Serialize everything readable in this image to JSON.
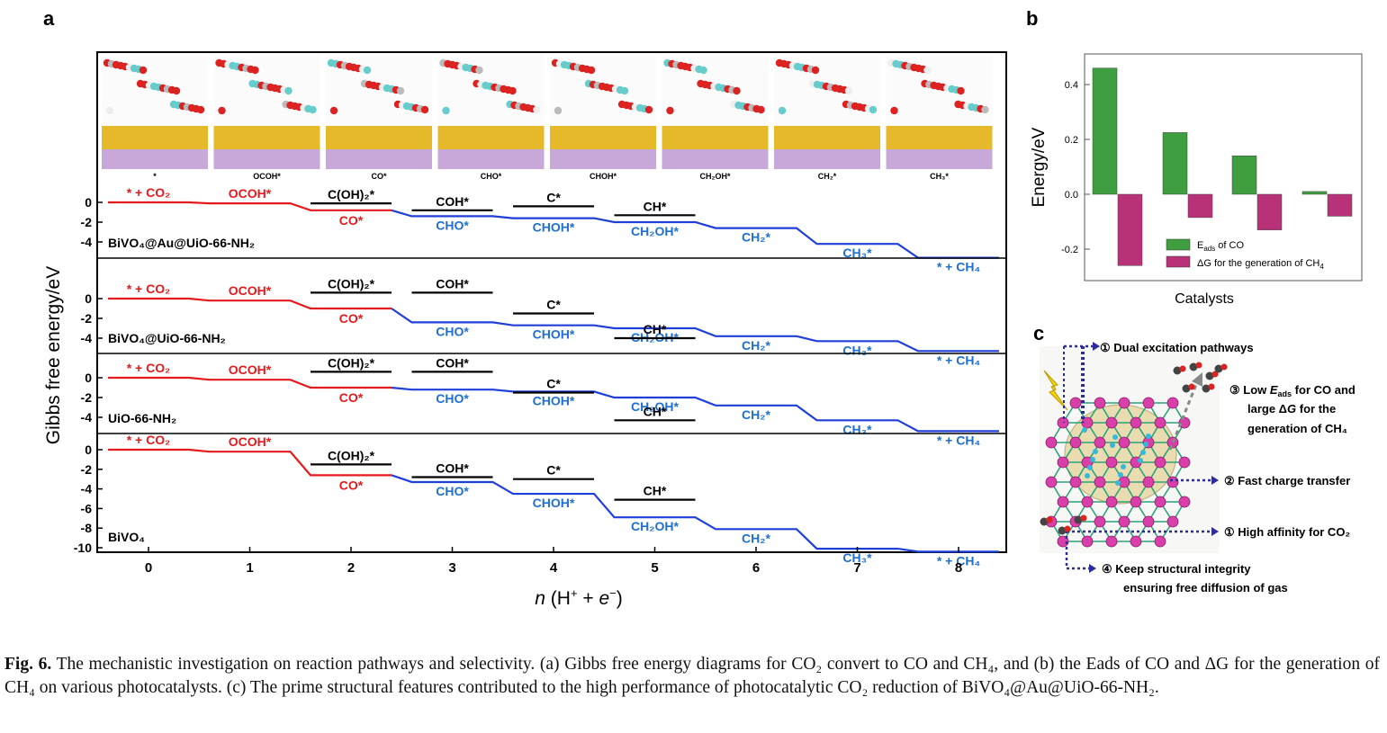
{
  "panel_labels": {
    "a": "a",
    "b": "b",
    "c": "c"
  },
  "panel_a": {
    "ylabel": "Gibbs free energy/eV",
    "xlabel": "n (H⁺ + e⁻)",
    "xticks": [
      "0",
      "1",
      "2",
      "3",
      "4",
      "5",
      "6",
      "7",
      "8"
    ],
    "structure_labels": [
      "*",
      "OCOH*",
      "CO*",
      "CHO*",
      "CHOH*",
      "CH₂OH*",
      "CH₂*",
      "CH₃*"
    ],
    "subpanels": [
      {
        "name": "BiVO₄@Au@UiO-66-NH₂",
        "yticks": [
          "0",
          "-2",
          "-4"
        ],
        "red": [
          {
            "label": "* + CO₂",
            "value": 0.0
          },
          {
            "label": "OCOH*",
            "value": -0.1
          },
          {
            "label": "CO*",
            "value": -0.8
          }
        ],
        "blue": [
          {
            "label": "CHO*",
            "value": -1.4
          },
          {
            "label": "CHOH*",
            "value": -1.6
          },
          {
            "label": "CH₂OH*",
            "value": -2.0
          },
          {
            "label": "CH₂*",
            "value": -2.6
          },
          {
            "label": "CH₃*",
            "value": -4.2
          },
          {
            "label": "* + CH₄",
            "value": -5.6
          }
        ],
        "black": [
          {
            "label": "C(OH)₂*",
            "step": 2,
            "value": -0.1
          },
          {
            "label": "COH*",
            "step": 3,
            "value": -0.8
          },
          {
            "label": "C*",
            "step": 4,
            "value": -0.4
          },
          {
            "label": "CH*",
            "step": 5,
            "value": -1.3
          }
        ]
      },
      {
        "name": "BiVO₄@UiO-66-NH₂",
        "yticks": [
          "0",
          "-2",
          "-4"
        ],
        "red": [
          {
            "label": "* + CO₂",
            "value": 0.0
          },
          {
            "label": "OCOH*",
            "value": -0.2
          },
          {
            "label": "CO*",
            "value": -1.0
          }
        ],
        "blue": [
          {
            "label": "CHO*",
            "value": -2.4
          },
          {
            "label": "CHOH*",
            "value": -2.7
          },
          {
            "label": "CH₂OH*",
            "value": -3.0
          },
          {
            "label": "CH₂*",
            "value": -3.8
          },
          {
            "label": "CH₃*",
            "value": -4.3
          },
          {
            "label": "* + CH₄",
            "value": -5.3
          }
        ],
        "black": [
          {
            "label": "C(OH)₂*",
            "step": 2,
            "value": 0.6
          },
          {
            "label": "COH*",
            "step": 3,
            "value": 0.6
          },
          {
            "label": "C*",
            "step": 4,
            "value": -1.5
          },
          {
            "label": "CH*",
            "step": 5,
            "value": -4.0
          }
        ]
      },
      {
        "name": "UiO-66-NH₂",
        "yticks": [
          "0",
          "-2",
          "-4"
        ],
        "red": [
          {
            "label": "* + CO₂",
            "value": 0.0
          },
          {
            "label": "OCOH*",
            "value": -0.2
          },
          {
            "label": "CO*",
            "value": -1.0
          }
        ],
        "blue": [
          {
            "label": "CHO*",
            "value": -1.2
          },
          {
            "label": "CHOH*",
            "value": -1.4
          },
          {
            "label": "CH₂OH*",
            "value": -2.0
          },
          {
            "label": "CH₂*",
            "value": -2.8
          },
          {
            "label": "CH₃*",
            "value": -4.3
          },
          {
            "label": "* + CH₄",
            "value": -5.4
          }
        ],
        "black": [
          {
            "label": "C(OH)₂*",
            "step": 2,
            "value": 0.6
          },
          {
            "label": "COH*",
            "step": 3,
            "value": 0.6
          },
          {
            "label": "C*",
            "step": 4,
            "value": -1.5
          },
          {
            "label": "CH*",
            "step": 5,
            "value": -4.3
          }
        ]
      },
      {
        "name": "BiVO₄",
        "yticks": [
          "0",
          "-2",
          "-4",
          "-6",
          "-8",
          "-10"
        ],
        "red": [
          {
            "label": "* + CO₂",
            "value": 0.0
          },
          {
            "label": "OCOH*",
            "value": -0.2
          },
          {
            "label": "CO*",
            "value": -2.6
          }
        ],
        "blue": [
          {
            "label": "CHO*",
            "value": -3.3
          },
          {
            "label": "CHOH*",
            "value": -4.5
          },
          {
            "label": "CH₂OH*",
            "value": -6.9
          },
          {
            "label": "CH₂*",
            "value": -8.1
          },
          {
            "label": "CH₃*",
            "value": -10.1
          },
          {
            "label": "* + CH₄",
            "value": -10.4
          }
        ],
        "black": [
          {
            "label": "C(OH)₂*",
            "step": 2,
            "value": -1.5
          },
          {
            "label": "COH*",
            "step": 3,
            "value": -2.8
          },
          {
            "label": "C*",
            "step": 4,
            "value": -3.0
          },
          {
            "label": "CH*",
            "step": 5,
            "value": -5.1
          }
        ]
      }
    ]
  },
  "chart_data": {
    "type": "bar",
    "xlabel": "Catalysts",
    "ylabel": "Energy/eV",
    "ylim": [
      -0.3,
      0.5
    ],
    "yticks": [
      "0.4",
      "0.2",
      "0.0",
      "-0.2"
    ],
    "series": [
      {
        "name": "Eads of CO",
        "color": "#3f9e3f",
        "values": [
          0.46,
          0.225,
          0.14,
          0.01
        ]
      },
      {
        "name": "ΔG for the generation of CH₄",
        "color": "#b8327a",
        "values": [
          -0.26,
          -0.085,
          -0.13,
          -0.08
        ]
      }
    ],
    "legend": [
      "E_ads of CO",
      "ΔG for the generation of CH₄"
    ],
    "legend_position": "bottom-right"
  },
  "panel_c": {
    "items": [
      "① Dual excitation pathways",
      "③ Low Eads for CO and",
      "large ΔG for the",
      "generation of CH₄",
      "② Fast charge transfer",
      "① High affinity for CO₂",
      "④ Keep structural integrity",
      "ensuring free diffusion of gas"
    ]
  },
  "caption": {
    "label": "Fig. 6.",
    "text": "The mechanistic investigation on reaction pathways and selectivity. (a) Gibbs free energy diagrams for CO₂ convert to CO and CH₄, and (b) the Eads of CO and ΔG for the generation of CH₄ on various photocatalysts. (c) The prime structural features contributed to the high performance of photocatalytic CO₂ reduction of BiVO₄@Au@UiO-66-NH₂."
  }
}
